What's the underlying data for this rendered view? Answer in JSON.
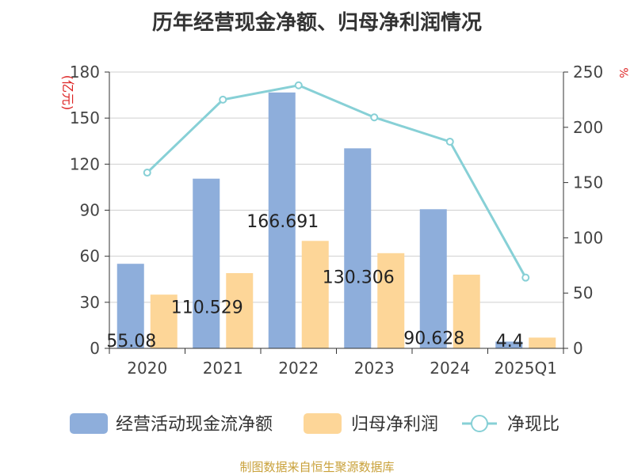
{
  "title": "历年经营现金净额、归母净利润情况",
  "footer": "制图数据来自恒生聚源数据库",
  "chart_data": {
    "type": "bar",
    "categories": [
      "2020",
      "2021",
      "2022",
      "2023",
      "2024",
      "2025Q1"
    ],
    "series": [
      {
        "name": "经营活动现金流净额",
        "type": "bar",
        "axis": "left",
        "color": "#8eaedb",
        "values": [
          55.08,
          110.529,
          166.691,
          130.306,
          90.628,
          4.4
        ]
      },
      {
        "name": "归母净利润",
        "type": "bar",
        "axis": "left",
        "color": "#fdd698",
        "values": [
          35,
          49,
          70,
          62,
          48,
          7
        ]
      },
      {
        "name": "净现比",
        "type": "line",
        "axis": "right",
        "color": "#87d0d6",
        "values": [
          159,
          225,
          238,
          209,
          187,
          64
        ]
      }
    ],
    "data_labels": [
      "55.08",
      "110.529",
      "166.691",
      "130.306",
      "90.628",
      "4.4"
    ],
    "ylabel": "(亿元)",
    "y2label": "%",
    "ylim": [
      0,
      180
    ],
    "y2lim": [
      0,
      250
    ],
    "yticks": [
      0,
      30,
      60,
      90,
      120,
      150,
      180
    ],
    "y2ticks": [
      0,
      50,
      100,
      150,
      200,
      250
    ],
    "grid": true,
    "legend_position": "bottom"
  }
}
